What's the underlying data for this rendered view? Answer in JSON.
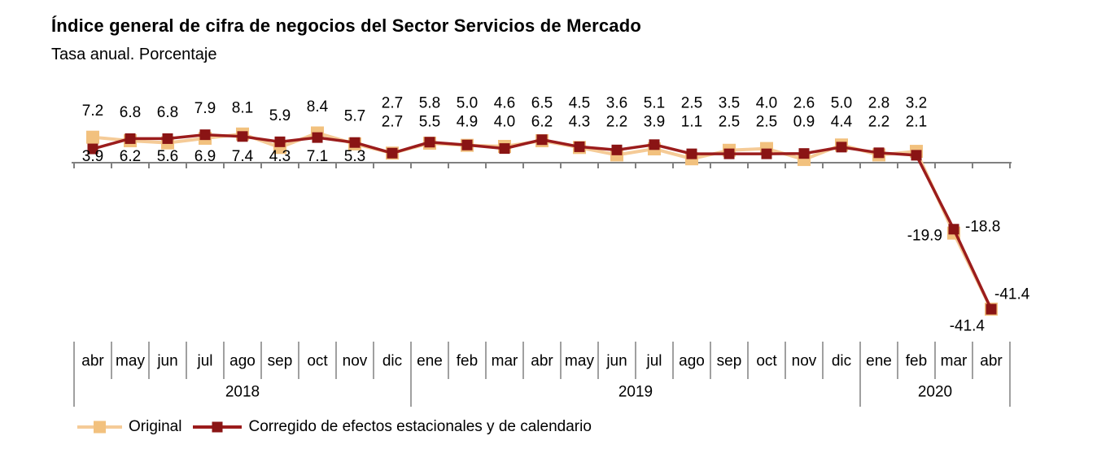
{
  "header": {
    "title": "Índice general de cifra de negocios del Sector Servicios de Mercado",
    "subtitle": "Tasa anual. Porcentaje"
  },
  "chart_data": {
    "type": "line",
    "title": "Índice general de cifra de negocios del Sector Servicios de Mercado",
    "subtitle": "Tasa anual. Porcentaje",
    "categories": [
      "abr",
      "may",
      "jun",
      "jul",
      "ago",
      "sep",
      "oct",
      "nov",
      "dic",
      "ene",
      "feb",
      "mar",
      "abr",
      "may",
      "jun",
      "jul",
      "ago",
      "sep",
      "oct",
      "nov",
      "dic",
      "ene",
      "feb",
      "mar",
      "abr"
    ],
    "year_groups": [
      {
        "label": "2018",
        "months": 9
      },
      {
        "label": "2019",
        "months": 12
      },
      {
        "label": "2020",
        "months": 4
      }
    ],
    "series": [
      {
        "name": "Original",
        "marker_color": "#F2C17E",
        "line_color": "#F5CB97",
        "values": [
          7.2,
          6.2,
          5.6,
          6.9,
          8.1,
          4.3,
          8.4,
          5.3,
          2.7,
          5.5,
          4.9,
          4.6,
          6.2,
          4.3,
          2.2,
          3.9,
          1.1,
          3.5,
          4.0,
          0.9,
          5.0,
          2.2,
          3.2,
          -19.9,
          -41.4
        ]
      },
      {
        "name": "Corregido de efectos estacionales y de calendario",
        "marker_color": "#8A1414",
        "line_color": "#9B1C1C",
        "values": [
          3.9,
          6.8,
          6.8,
          7.9,
          7.4,
          5.9,
          7.1,
          5.7,
          2.7,
          5.8,
          5.0,
          4.0,
          6.5,
          4.5,
          3.6,
          5.1,
          2.5,
          2.5,
          2.5,
          2.6,
          4.4,
          2.8,
          2.1,
          -18.8,
          -41.4
        ]
      }
    ],
    "point_labels_visible": true,
    "ylim": [
      -45,
      10
    ],
    "grid": false,
    "legend_position": "bottom",
    "axis_color": "#808080",
    "label_color": "#000000"
  },
  "legend": {
    "items": [
      {
        "label": "Original"
      },
      {
        "label": "Corregido de efectos estacionales y de calendario"
      }
    ]
  }
}
